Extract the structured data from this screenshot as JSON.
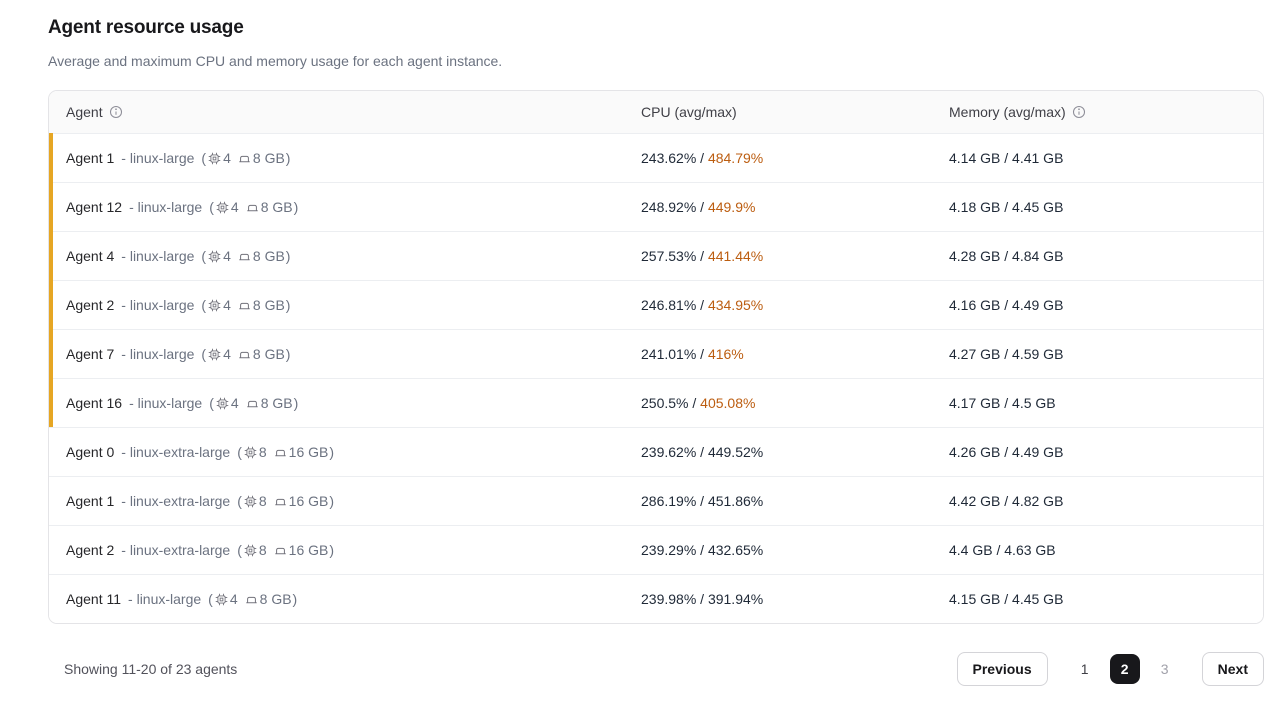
{
  "page": {
    "title": "Agent resource usage",
    "subtitle": "Average and maximum CPU and memory usage for each agent instance."
  },
  "table": {
    "headers": {
      "agent": "Agent",
      "cpu": "CPU (avg/max)",
      "memory": "Memory (avg/max)"
    },
    "format": {
      "value_separator": " / ",
      "type_prefix": "- ",
      "spec_open": "(",
      "spec_close": ")"
    },
    "rows": [
      {
        "name": "Agent 1",
        "type": "linux-large",
        "cpu_count": "4",
        "mem_size": "8 GB",
        "cpu_avg": "243.62%",
        "cpu_max": "484.79%",
        "mem_avg": "4.14 GB",
        "mem_max": "4.41 GB",
        "warning": true
      },
      {
        "name": "Agent 12",
        "type": "linux-large",
        "cpu_count": "4",
        "mem_size": "8 GB",
        "cpu_avg": "248.92%",
        "cpu_max": "449.9%",
        "mem_avg": "4.18 GB",
        "mem_max": "4.45 GB",
        "warning": true
      },
      {
        "name": "Agent 4",
        "type": "linux-large",
        "cpu_count": "4",
        "mem_size": "8 GB",
        "cpu_avg": "257.53%",
        "cpu_max": "441.44%",
        "mem_avg": "4.28 GB",
        "mem_max": "4.84 GB",
        "warning": true
      },
      {
        "name": "Agent 2",
        "type": "linux-large",
        "cpu_count": "4",
        "mem_size": "8 GB",
        "cpu_avg": "246.81%",
        "cpu_max": "434.95%",
        "mem_avg": "4.16 GB",
        "mem_max": "4.49 GB",
        "warning": true
      },
      {
        "name": "Agent 7",
        "type": "linux-large",
        "cpu_count": "4",
        "mem_size": "8 GB",
        "cpu_avg": "241.01%",
        "cpu_max": "416%",
        "mem_avg": "4.27 GB",
        "mem_max": "4.59 GB",
        "warning": true
      },
      {
        "name": "Agent 16",
        "type": "linux-large",
        "cpu_count": "4",
        "mem_size": "8 GB",
        "cpu_avg": "250.5%",
        "cpu_max": "405.08%",
        "mem_avg": "4.17 GB",
        "mem_max": "4.5 GB",
        "warning": true
      },
      {
        "name": "Agent 0",
        "type": "linux-extra-large",
        "cpu_count": "8",
        "mem_size": "16 GB",
        "cpu_avg": "239.62%",
        "cpu_max": "449.52%",
        "mem_avg": "4.26 GB",
        "mem_max": "4.49 GB",
        "warning": false
      },
      {
        "name": "Agent 1",
        "type": "linux-extra-large",
        "cpu_count": "8",
        "mem_size": "16 GB",
        "cpu_avg": "286.19%",
        "cpu_max": "451.86%",
        "mem_avg": "4.42 GB",
        "mem_max": "4.82 GB",
        "warning": false
      },
      {
        "name": "Agent 2",
        "type": "linux-extra-large",
        "cpu_count": "8",
        "mem_size": "16 GB",
        "cpu_avg": "239.29%",
        "cpu_max": "432.65%",
        "mem_avg": "4.4 GB",
        "mem_max": "4.63 GB",
        "warning": false
      },
      {
        "name": "Agent 11",
        "type": "linux-large",
        "cpu_count": "4",
        "mem_size": "8 GB",
        "cpu_avg": "239.98%",
        "cpu_max": "391.94%",
        "mem_avg": "4.15 GB",
        "mem_max": "4.45 GB",
        "warning": false
      }
    ]
  },
  "footer": {
    "summary": "Showing 11-20 of 23 agents",
    "previous_label": "Previous",
    "next_label": "Next",
    "pages": [
      "1",
      "2",
      "3"
    ],
    "active_page": "2"
  },
  "colors": {
    "warning_bar": "#e6a623",
    "warning_text": "#bc5d10",
    "active_page_bg": "#18181b"
  }
}
